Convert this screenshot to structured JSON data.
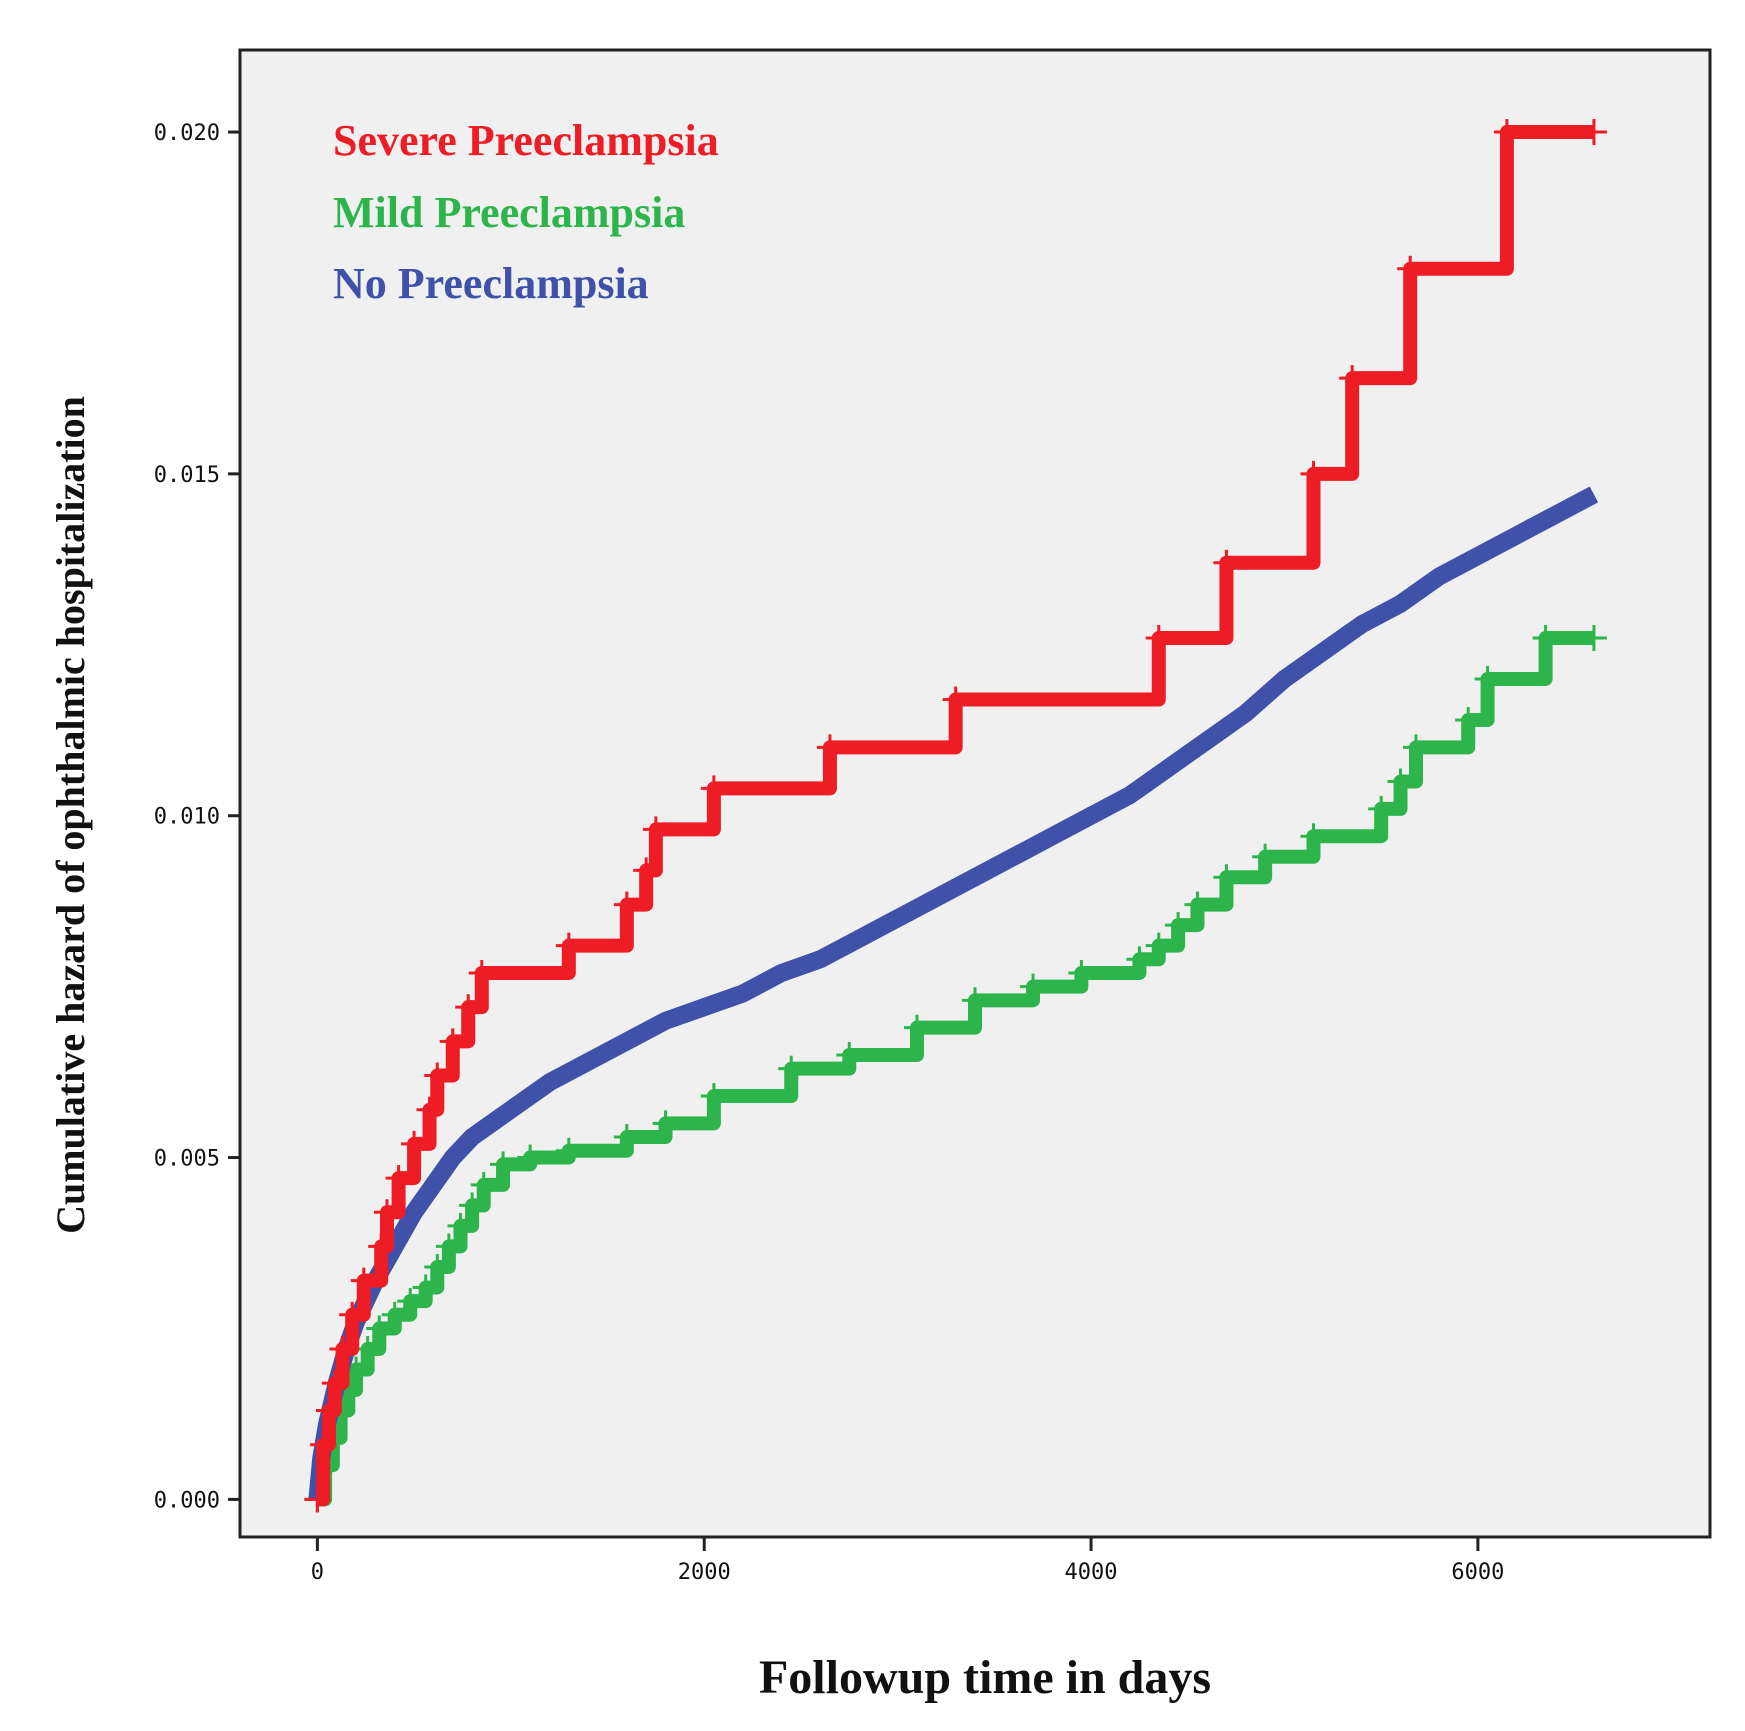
{
  "chart_data": {
    "type": "line",
    "title": "",
    "xlabel": "Followup time in days",
    "ylabel": "Cumulative hazard of ophthalmic hospitalization",
    "xlim": [
      -400,
      7200
    ],
    "ylim": [
      -0.00055,
      0.0212
    ],
    "xticks": [
      0,
      2000,
      4000,
      6000
    ],
    "xtick_labels": [
      "0",
      "2000",
      "4000",
      "6000"
    ],
    "yticks": [
      0.0,
      0.005,
      0.01,
      0.015,
      0.02
    ],
    "ytick_labels": [
      "0.000",
      "0.005",
      "0.010",
      "0.015",
      "0.020"
    ],
    "grid": false,
    "legend_position": "top-left",
    "background": "#f0f0f0",
    "series": [
      {
        "name": "Severe Preeclampsia",
        "color": "#ee1c25",
        "step": true,
        "x": [
          0,
          30,
          60,
          90,
          130,
          180,
          240,
          330,
          360,
          420,
          500,
          580,
          620,
          700,
          780,
          850,
          1300,
          1600,
          1700,
          1750,
          2050,
          2650,
          3300,
          4350,
          4700,
          5150,
          5350,
          5650,
          6150,
          6600
        ],
        "y": [
          0.0,
          0.0008,
          0.0013,
          0.0017,
          0.0022,
          0.0027,
          0.0032,
          0.0037,
          0.0042,
          0.0047,
          0.0052,
          0.0057,
          0.0062,
          0.0067,
          0.0072,
          0.0077,
          0.0081,
          0.0087,
          0.0092,
          0.0098,
          0.0104,
          0.011,
          0.0117,
          0.0126,
          0.0137,
          0.015,
          0.0164,
          0.018,
          0.02,
          0.02
        ]
      },
      {
        "name": "Mild Preeclampsia",
        "color": "#2db54b",
        "step": true,
        "x": [
          0,
          40,
          80,
          120,
          160,
          200,
          260,
          320,
          400,
          480,
          560,
          620,
          680,
          740,
          800,
          860,
          960,
          1100,
          1300,
          1600,
          1800,
          2050,
          2450,
          2750,
          3100,
          3400,
          3700,
          3950,
          4250,
          4350,
          4450,
          4550,
          4700,
          4900,
          5150,
          5500,
          5600,
          5680,
          5950,
          6050,
          6350,
          6600
        ],
        "y": [
          0.0,
          0.0005,
          0.0009,
          0.0013,
          0.0016,
          0.0019,
          0.0022,
          0.0025,
          0.0027,
          0.0029,
          0.0031,
          0.0034,
          0.0037,
          0.004,
          0.0043,
          0.0046,
          0.0049,
          0.005,
          0.0051,
          0.0053,
          0.0055,
          0.0059,
          0.0063,
          0.0065,
          0.0069,
          0.0073,
          0.0075,
          0.0077,
          0.0079,
          0.0081,
          0.0084,
          0.0087,
          0.0091,
          0.0094,
          0.0097,
          0.0101,
          0.0105,
          0.011,
          0.0114,
          0.012,
          0.0126,
          0.0126
        ]
      },
      {
        "name": "No Preeclampsia",
        "color": "#3f51a8",
        "step": false,
        "x": [
          0,
          20,
          50,
          100,
          150,
          200,
          300,
          400,
          500,
          600,
          700,
          800,
          900,
          1000,
          1200,
          1400,
          1600,
          1800,
          2000,
          2200,
          2400,
          2600,
          2800,
          3000,
          3200,
          3400,
          3600,
          3800,
          4000,
          4200,
          4400,
          4600,
          4800,
          5000,
          5200,
          5400,
          5600,
          5800,
          6000,
          6200,
          6400,
          6600
        ],
        "y": [
          0.0,
          0.0006,
          0.0011,
          0.0017,
          0.0022,
          0.0026,
          0.0032,
          0.0037,
          0.0042,
          0.0046,
          0.005,
          0.0053,
          0.0055,
          0.0057,
          0.0061,
          0.0064,
          0.0067,
          0.007,
          0.0072,
          0.0074,
          0.0077,
          0.0079,
          0.0082,
          0.0085,
          0.0088,
          0.0091,
          0.0094,
          0.0097,
          0.01,
          0.0103,
          0.0107,
          0.0111,
          0.0115,
          0.012,
          0.0124,
          0.0128,
          0.0131,
          0.0135,
          0.0138,
          0.0141,
          0.0144,
          0.0147
        ]
      }
    ]
  }
}
